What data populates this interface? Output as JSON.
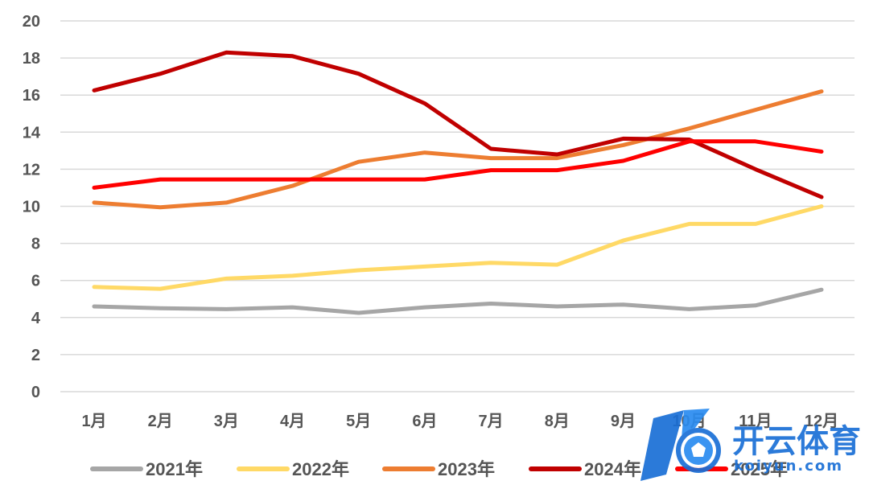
{
  "chart_data": {
    "type": "line",
    "categories": [
      "1月",
      "2月",
      "3月",
      "4月",
      "5月",
      "6月",
      "7月",
      "8月",
      "9月",
      "10月",
      "11月",
      "12月"
    ],
    "ylim": [
      0,
      20
    ],
    "yticks": [
      0,
      2,
      4,
      6,
      8,
      10,
      12,
      14,
      16,
      18,
      20
    ],
    "grid": true,
    "legend_position": "bottom",
    "series": [
      {
        "name": "2021年",
        "color": "#a6a6a6",
        "values": [
          4.6,
          4.5,
          4.45,
          4.55,
          4.25,
          4.55,
          4.75,
          4.6,
          4.7,
          4.45,
          4.65,
          5.5
        ]
      },
      {
        "name": "2022年",
        "color": "#ffd966",
        "values": [
          5.65,
          5.55,
          6.1,
          6.25,
          6.55,
          6.75,
          6.95,
          6.85,
          8.15,
          9.05,
          9.05,
          10.0
        ]
      },
      {
        "name": "2023年",
        "color": "#ed7d31",
        "values": [
          10.2,
          9.95,
          10.2,
          11.1,
          12.4,
          12.9,
          12.6,
          12.6,
          13.3,
          14.2,
          15.2,
          16.2
        ]
      },
      {
        "name": "2024年",
        "color": "#c00000",
        "values": [
          16.25,
          17.15,
          18.3,
          18.1,
          17.15,
          15.55,
          13.1,
          12.8,
          13.65,
          13.6,
          12.0,
          10.5
        ]
      },
      {
        "name": "2025年",
        "color": "#ff0000",
        "values": [
          11.0,
          11.45,
          11.45,
          11.45,
          11.45,
          11.45,
          11.95,
          11.95,
          12.45,
          13.5,
          13.5,
          12.95
        ]
      }
    ]
  },
  "watermark": {
    "title": "开云体育",
    "url": "koiyun.com",
    "icon": "soccer-ball-icon"
  }
}
